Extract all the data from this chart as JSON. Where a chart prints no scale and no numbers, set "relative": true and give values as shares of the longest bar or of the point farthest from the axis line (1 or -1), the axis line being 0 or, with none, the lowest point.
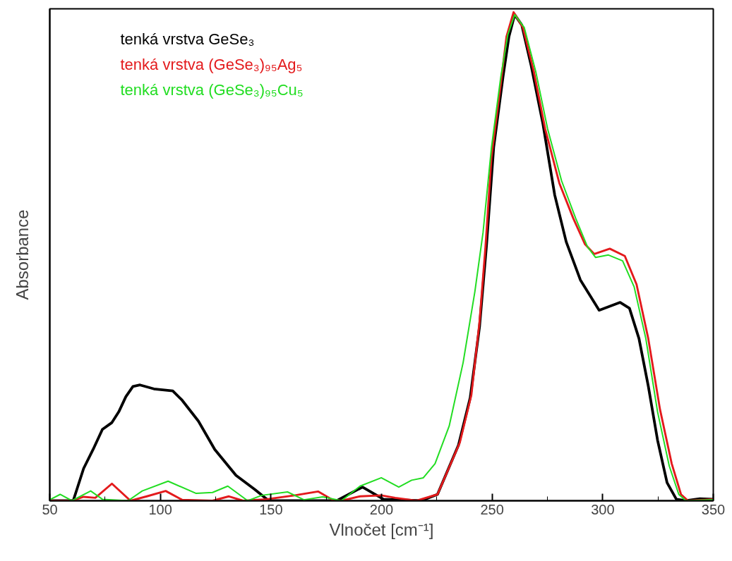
{
  "chart_data": {
    "type": "line",
    "xlabel": "Vlnočet [cm⁻¹]",
    "ylabel": "Absorbance",
    "relative": true,
    "xlim": [
      50,
      350
    ],
    "xticks": [
      50,
      100,
      150,
      200,
      250,
      300,
      350
    ],
    "grid": false,
    "legend": "top left",
    "marker": "none",
    "line_style": "solid",
    "series": [
      {
        "name": "tenká vrstva GeSe₃",
        "color": "#000000",
        "x": [
          50,
          60.6,
          65.3,
          69.6,
          73.8,
          78.1,
          81.2,
          84.4,
          87.6,
          90.8,
          97.1,
          105.6,
          109.8,
          117.2,
          124.6,
          134.2,
          142.7,
          149,
          179.7,
          191.4,
          200.9,
          217.9,
          225.3,
          234.8,
          240.1,
          244.3,
          247.5,
          250.7,
          254.9,
          257.6,
          260.2,
          263.4,
          267.6,
          273,
          278.3,
          283.5,
          289.9,
          298.4,
          307.9,
          312.1,
          316.4,
          320.6,
          324.8,
          329.1,
          333.3,
          337.6,
          343.9,
          350
        ],
        "values": [
          0,
          0,
          0.066,
          0.105,
          0.146,
          0.16,
          0.182,
          0.213,
          0.234,
          0.237,
          0.229,
          0.225,
          0.206,
          0.163,
          0.105,
          0.052,
          0.023,
          0,
          0,
          0.028,
          0.003,
          0,
          0.013,
          0.114,
          0.211,
          0.356,
          0.525,
          0.723,
          0.867,
          0.95,
          0.995,
          0.974,
          0.892,
          0.771,
          0.626,
          0.53,
          0.452,
          0.39,
          0.406,
          0.394,
          0.332,
          0.235,
          0.124,
          0.037,
          0.003,
          0,
          0.004,
          0.003
        ]
      },
      {
        "name": "tenká vrstva (GeSe₃)₉₅Ag₅",
        "color": "#e31a1c",
        "x": [
          50,
          60,
          65.3,
          70.6,
          78.1,
          86.5,
          93.9,
          102.4,
          109.8,
          123.6,
          131,
          137.4,
          148,
          160.7,
          171.3,
          177.7,
          181.9,
          190.3,
          199.9,
          206.2,
          215.8,
          225.3,
          235.4,
          240.6,
          244.3,
          247,
          249.7,
          253.9,
          256.5,
          259.7,
          263.9,
          268.7,
          274,
          280.4,
          286.7,
          292,
          296.2,
          303.2,
          310,
          315.3,
          320.6,
          325.9,
          331.2,
          335.4,
          338.6,
          350
        ],
        "values": [
          0,
          0,
          0.008,
          0.006,
          0.035,
          0,
          0.009,
          0.02,
          0.002,
          0,
          0.009,
          0,
          0.003,
          0.011,
          0.019,
          0.002,
          0,
          0.009,
          0.011,
          0.006,
          0,
          0.013,
          0.119,
          0.216,
          0.366,
          0.52,
          0.703,
          0.853,
          0.95,
          1.0,
          0.969,
          0.882,
          0.761,
          0.65,
          0.578,
          0.525,
          0.505,
          0.516,
          0.501,
          0.443,
          0.332,
          0.187,
          0.076,
          0.013,
          0,
          0.003
        ]
      },
      {
        "name": "tenká vrstva (GeSe₃)₉₅Cu₅",
        "color": "#22dd22",
        "x": [
          50,
          54.7,
          60,
          68.5,
          73.8,
          85.4,
          91.8,
          103.5,
          116.2,
          123.6,
          130.5,
          139.5,
          145.8,
          157.5,
          164.9,
          173.4,
          181.9,
          190.3,
          199.9,
          207.8,
          213.6,
          218.9,
          224.2,
          230.6,
          236.9,
          242.2,
          245.9,
          249.7,
          253.9,
          257.1,
          260.2,
          264.5,
          269.8,
          275.1,
          281.4,
          287.8,
          293.1,
          296.8,
          302.6,
          309,
          314.2,
          319.5,
          324.8,
          330.1,
          334.4,
          337.6,
          350
        ],
        "values": [
          0.002,
          0.013,
          0,
          0.02,
          0.003,
          0,
          0.02,
          0.04,
          0.015,
          0.017,
          0.03,
          0,
          0.011,
          0.018,
          0.002,
          0.008,
          0,
          0.03,
          0.047,
          0.028,
          0.042,
          0.047,
          0.076,
          0.153,
          0.283,
          0.428,
          0.549,
          0.723,
          0.867,
          0.954,
          0.995,
          0.969,
          0.877,
          0.761,
          0.655,
          0.578,
          0.52,
          0.498,
          0.503,
          0.491,
          0.438,
          0.332,
          0.182,
          0.071,
          0.013,
          0,
          0.002
        ]
      }
    ]
  }
}
